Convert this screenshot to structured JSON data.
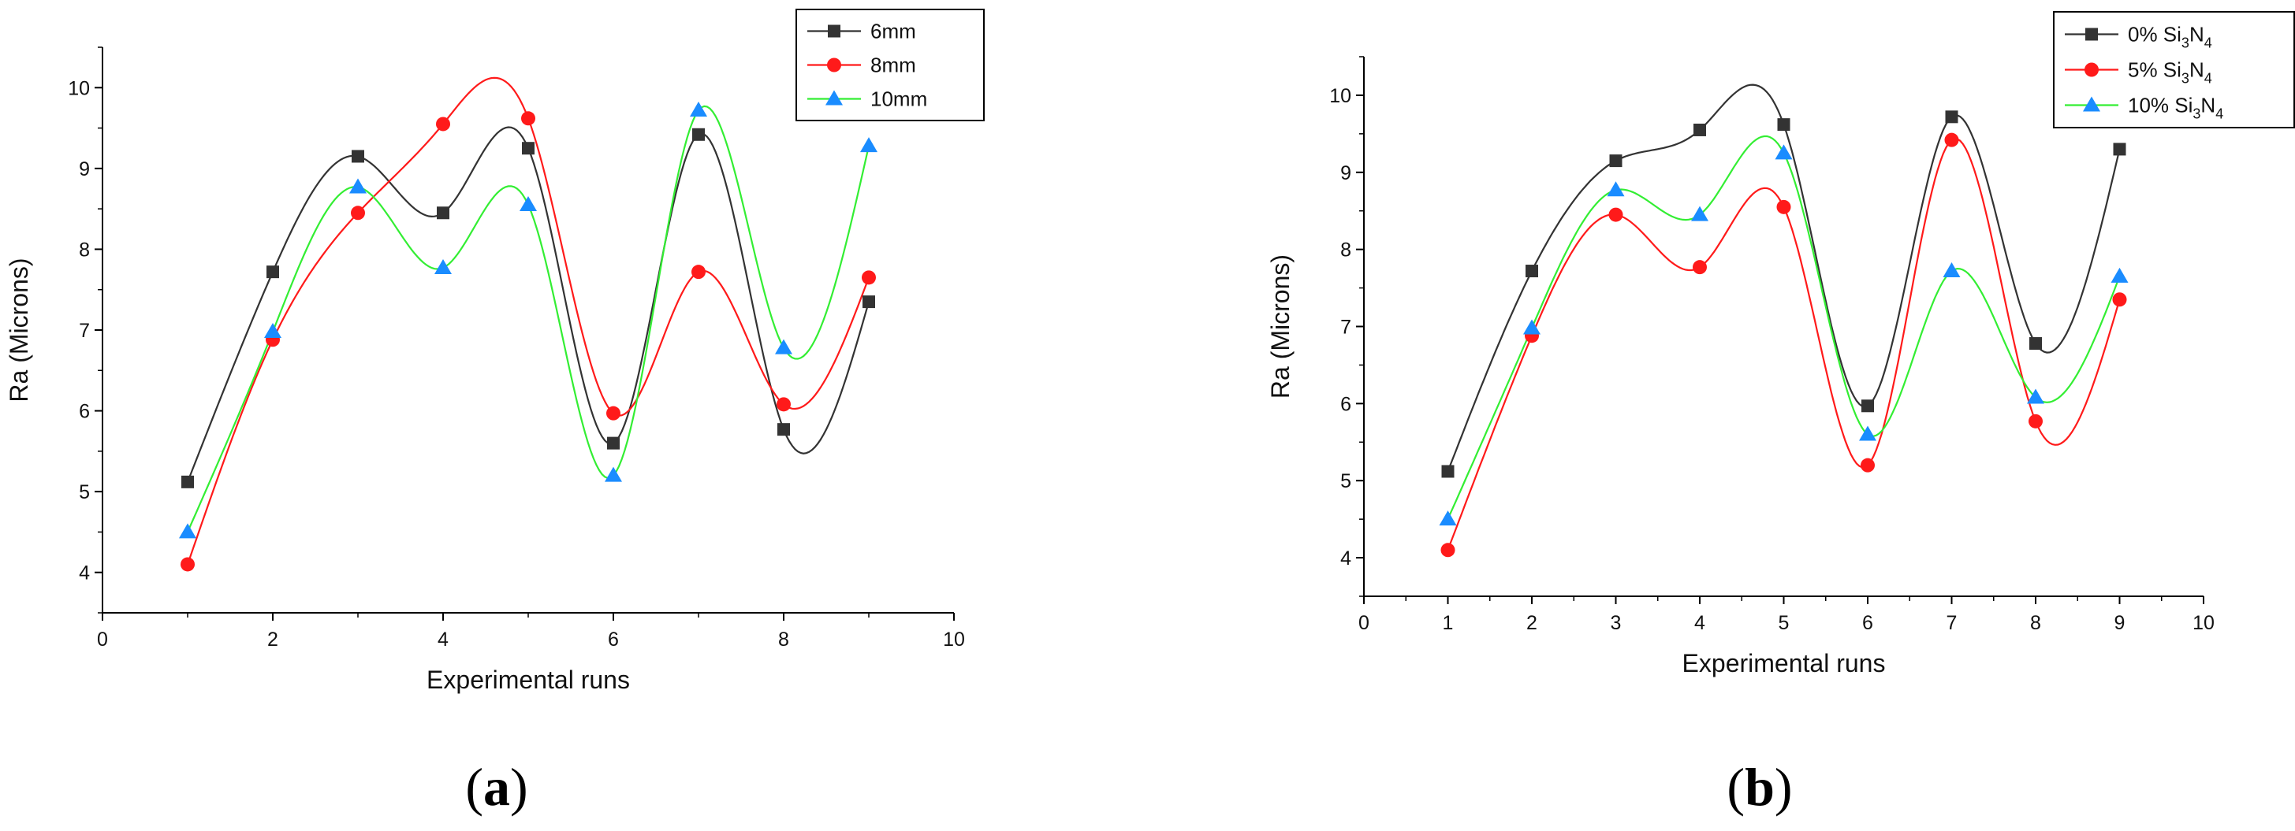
{
  "chart_data": [
    {
      "type": "line",
      "panel_label": "a",
      "xlabel": "Experimental runs",
      "ylabel": "Ra (Microns)",
      "xlim": [
        0,
        10
      ],
      "ylim": [
        3.5,
        10.5
      ],
      "xticks": [
        0,
        2,
        4,
        6,
        8,
        10
      ],
      "yticks": [
        4,
        5,
        6,
        7,
        8,
        9,
        10
      ],
      "legend_position": "top-right",
      "series": [
        {
          "name": "6mm",
          "color": "#333333",
          "marker": "square",
          "x": [
            1,
            2,
            3,
            4,
            5,
            6,
            7,
            8,
            9
          ],
          "values": [
            5.12,
            7.72,
            9.15,
            8.45,
            9.25,
            5.6,
            9.42,
            5.77,
            7.35
          ]
        },
        {
          "name": "8mm",
          "color": "#ff1a1a",
          "marker": "circle",
          "x": [
            1,
            2,
            3,
            4,
            5,
            6,
            7,
            8,
            9
          ],
          "values": [
            4.1,
            6.88,
            8.45,
            9.55,
            9.62,
            5.97,
            7.72,
            6.08,
            7.65
          ]
        },
        {
          "name": "10mm",
          "color": "#1a8cff",
          "line_color": "#33ee33",
          "marker": "triangle",
          "x": [
            1,
            2,
            3,
            4,
            5,
            6,
            7,
            8,
            9
          ],
          "values": [
            4.5,
            6.98,
            8.77,
            7.77,
            8.55,
            5.2,
            9.72,
            6.78,
            9.28
          ]
        }
      ]
    },
    {
      "type": "line",
      "panel_label": "b",
      "xlabel": "Experimental runs",
      "ylabel": "Ra (Microns)",
      "xlim": [
        0,
        10
      ],
      "ylim": [
        3.5,
        10.5
      ],
      "xticks": [
        0,
        1,
        2,
        3,
        4,
        5,
        6,
        7,
        8,
        9,
        10
      ],
      "yticks": [
        4,
        5,
        6,
        7,
        8,
        9,
        10
      ],
      "legend_position": "top-right",
      "series": [
        {
          "name": "0% Si3N4",
          "legend_prefix": "0% Si",
          "color": "#333333",
          "marker": "square",
          "x": [
            1,
            2,
            3,
            4,
            5,
            6,
            7,
            8,
            9
          ],
          "values": [
            5.12,
            7.72,
            9.15,
            9.55,
            9.62,
            5.97,
            9.72,
            6.78,
            9.3
          ]
        },
        {
          "name": "5% Si3N4",
          "legend_prefix": "5% Si",
          "color": "#ff1a1a",
          "marker": "circle",
          "x": [
            1,
            2,
            3,
            4,
            5,
            6,
            7,
            8,
            9
          ],
          "values": [
            4.1,
            6.88,
            8.45,
            7.77,
            8.55,
            5.2,
            9.42,
            5.77,
            7.35
          ]
        },
        {
          "name": "10% Si3N4",
          "legend_prefix": "10% Si",
          "color": "#1a8cff",
          "line_color": "#33ee33",
          "marker": "triangle",
          "x": [
            1,
            2,
            3,
            4,
            5,
            6,
            7,
            8,
            9
          ],
          "values": [
            4.5,
            6.98,
            8.77,
            8.45,
            9.25,
            5.6,
            7.72,
            6.08,
            7.65
          ]
        }
      ]
    }
  ]
}
